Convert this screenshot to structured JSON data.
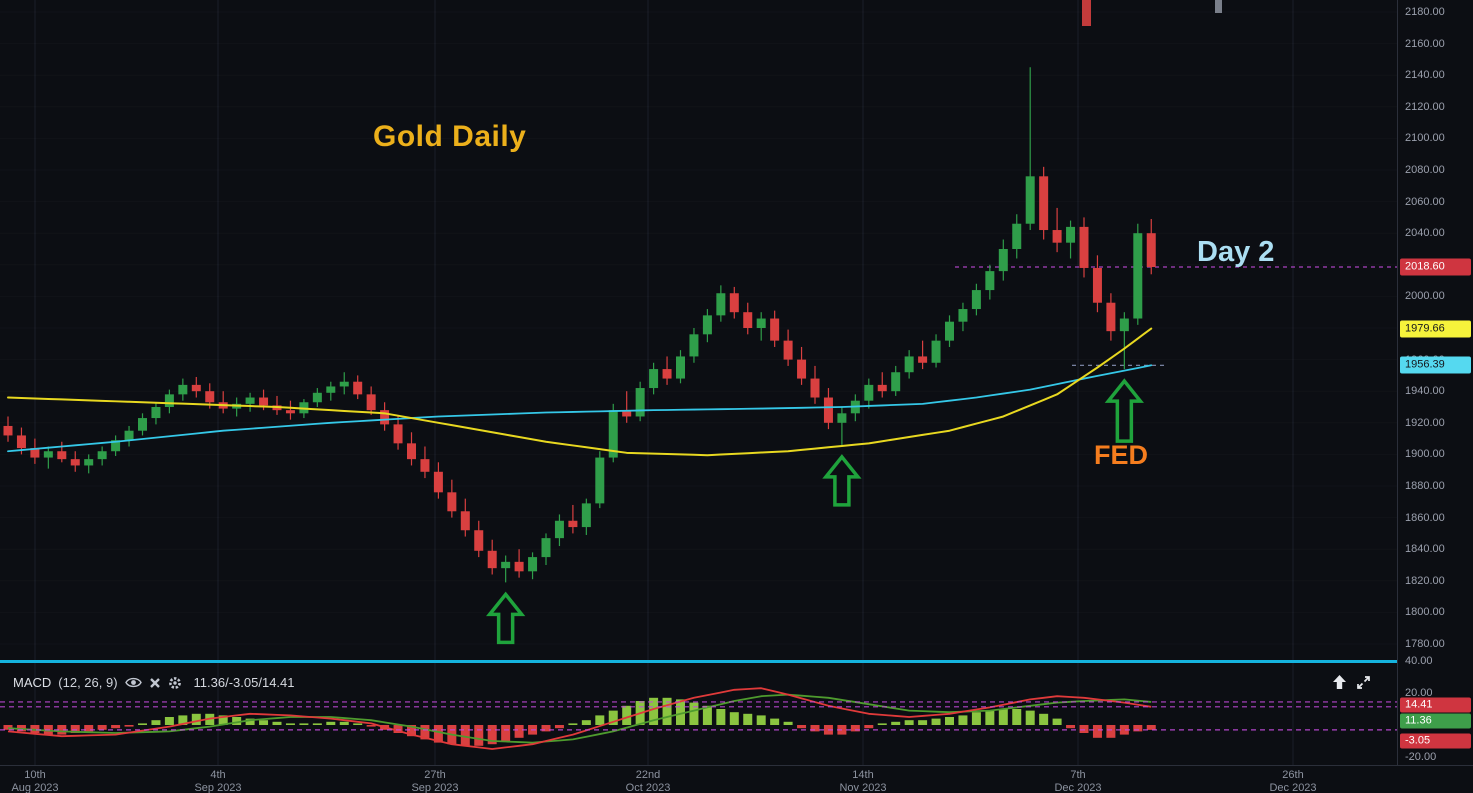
{
  "annotations": {
    "chart_title": "Gold Daily",
    "day_label": "Day 2",
    "fed_label": "FED"
  },
  "colors": {
    "background": "#0c0e13",
    "candle_up": "#2f9e4a",
    "candle_down": "#d94040",
    "ma_yellow": "#e8d820",
    "ma_cyan": "#35c8e8",
    "hist_up": "#8bc540",
    "hist_down": "#d94040",
    "macd_line": "#e03a3a",
    "signal_line": "#4e9b2e",
    "dashed_level": "#c44bdd",
    "separator_line": "#15b3de",
    "arrow_green": "#1fa33c",
    "title_gold": "#ecb01b",
    "day2_blue": "#abdef2",
    "fed_orange": "#f57d1e",
    "axis_text": "#9ba0ad"
  },
  "price_axis": {
    "ticks": [
      "2180.00",
      "2160.00",
      "2140.00",
      "2120.00",
      "2100.00",
      "2080.00",
      "2060.00",
      "2040.00",
      "2020.00",
      "2000.00",
      "1980.00",
      "1960.00",
      "1940.00",
      "1920.00",
      "1900.00",
      "1880.00",
      "1860.00",
      "1840.00",
      "1820.00",
      "1800.00",
      "1780.00"
    ],
    "badges": [
      {
        "label": "2018.60",
        "value": 2018.6,
        "bg": "#cf3540",
        "fg": "#ffffff",
        "name": "last-price-badge"
      },
      {
        "label": "1979.66",
        "value": 1979.66,
        "bg": "#f6f33b",
        "fg": "#15171c",
        "name": "yellow-ma-price-badge"
      },
      {
        "label": "1956.39",
        "value": 1956.39,
        "bg": "#55d9f0",
        "fg": "#15171c",
        "name": "cyan-ma-price-badge"
      }
    ]
  },
  "macd_panel": {
    "title": "MACD",
    "params": "(12, 26, 9)",
    "values": "11.36/-3.05/14.41",
    "ticks": [
      {
        "label": "40.00",
        "value": 40
      },
      {
        "label": "20.00",
        "value": 20
      },
      {
        "label": "0.00",
        "value": 0
      },
      {
        "label": "-20.00",
        "value": -20
      }
    ],
    "badges": [
      {
        "label": "14.41",
        "bg": "#cf3540",
        "fg": "#ffffff",
        "name": "macd-signal-badge"
      },
      {
        "label": "11.36",
        "bg": "#3e9e4a",
        "fg": "#ffffff",
        "name": "macd-line-badge"
      },
      {
        "label": "-3.05",
        "bg": "#cf3540",
        "fg": "#ffffff",
        "name": "macd-hist-badge"
      }
    ]
  },
  "time_axis": {
    "labels": [
      {
        "day": "10th",
        "month": "Aug 2023"
      },
      {
        "day": "4th",
        "month": "Sep 2023"
      },
      {
        "day": "27th",
        "month": "Sep 2023"
      },
      {
        "day": "22nd",
        "month": "Oct 2023"
      },
      {
        "day": "14th",
        "month": "Nov 2023"
      },
      {
        "day": "7th",
        "month": "Dec 2023"
      },
      {
        "day": "26th",
        "month": "Dec 2023"
      }
    ]
  },
  "chart_data": {
    "type": "candlestick",
    "title": "Gold Daily",
    "price_axis_visible_range": [
      1780,
      2180
    ],
    "x_tick_labels": [
      "10th Aug 2023",
      "4th Sep 2023",
      "27th Sep 2023",
      "22nd Oct 2023",
      "14th Nov 2023",
      "7th Dec 2023",
      "26th Dec 2023"
    ],
    "candles": [
      [
        1918,
        1924,
        1908,
        1912
      ],
      [
        1912,
        1917,
        1900,
        1904
      ],
      [
        1904,
        1910,
        1894,
        1898
      ],
      [
        1898,
        1905,
        1891,
        1902
      ],
      [
        1902,
        1908,
        1895,
        1897
      ],
      [
        1897,
        1902,
        1889,
        1893
      ],
      [
        1893,
        1900,
        1888,
        1897
      ],
      [
        1897,
        1905,
        1893,
        1902
      ],
      [
        1902,
        1912,
        1899,
        1909
      ],
      [
        1909,
        1918,
        1905,
        1915
      ],
      [
        1915,
        1926,
        1912,
        1923
      ],
      [
        1923,
        1933,
        1919,
        1930
      ],
      [
        1930,
        1941,
        1926,
        1938
      ],
      [
        1938,
        1948,
        1934,
        1944
      ],
      [
        1944,
        1949,
        1936,
        1940
      ],
      [
        1940,
        1945,
        1929,
        1933
      ],
      [
        1933,
        1940,
        1926,
        1929
      ],
      [
        1929,
        1936,
        1924,
        1932
      ],
      [
        1932,
        1939,
        1927,
        1936
      ],
      [
        1936,
        1941,
        1928,
        1931
      ],
      [
        1931,
        1937,
        1925,
        1928
      ],
      [
        1928,
        1934,
        1922,
        1926
      ],
      [
        1926,
        1935,
        1923,
        1933
      ],
      [
        1933,
        1942,
        1930,
        1939
      ],
      [
        1939,
        1946,
        1934,
        1943
      ],
      [
        1943,
        1952,
        1938,
        1946
      ],
      [
        1946,
        1950,
        1935,
        1938
      ],
      [
        1938,
        1943,
        1925,
        1928
      ],
      [
        1928,
        1933,
        1915,
        1919
      ],
      [
        1919,
        1924,
        1903,
        1907
      ],
      [
        1907,
        1914,
        1893,
        1897
      ],
      [
        1897,
        1905,
        1885,
        1889
      ],
      [
        1889,
        1895,
        1872,
        1876
      ],
      [
        1876,
        1884,
        1860,
        1864
      ],
      [
        1864,
        1872,
        1848,
        1852
      ],
      [
        1852,
        1858,
        1835,
        1839
      ],
      [
        1839,
        1846,
        1824,
        1828
      ],
      [
        1828,
        1836,
        1819,
        1832
      ],
      [
        1832,
        1840,
        1822,
        1826
      ],
      [
        1826,
        1838,
        1821,
        1835
      ],
      [
        1835,
        1850,
        1830,
        1847
      ],
      [
        1847,
        1862,
        1842,
        1858
      ],
      [
        1858,
        1868,
        1850,
        1854
      ],
      [
        1854,
        1872,
        1849,
        1869
      ],
      [
        1869,
        1902,
        1866,
        1898
      ],
      [
        1898,
        1932,
        1895,
        1928
      ],
      [
        1928,
        1940,
        1920,
        1924
      ],
      [
        1924,
        1946,
        1921,
        1942
      ],
      [
        1942,
        1958,
        1938,
        1954
      ],
      [
        1954,
        1962,
        1944,
        1948
      ],
      [
        1948,
        1966,
        1945,
        1962
      ],
      [
        1962,
        1980,
        1958,
        1976
      ],
      [
        1976,
        1992,
        1971,
        1988
      ],
      [
        1988,
        2007,
        1984,
        2002
      ],
      [
        2002,
        2006,
        1986,
        1990
      ],
      [
        1990,
        1996,
        1976,
        1980
      ],
      [
        1980,
        1990,
        1972,
        1986
      ],
      [
        1986,
        1991,
        1968,
        1972
      ],
      [
        1972,
        1979,
        1956,
        1960
      ],
      [
        1960,
        1968,
        1944,
        1948
      ],
      [
        1948,
        1956,
        1932,
        1936
      ],
      [
        1936,
        1942,
        1916,
        1920
      ],
      [
        1920,
        1930,
        1906,
        1926
      ],
      [
        1926,
        1938,
        1921,
        1934
      ],
      [
        1934,
        1948,
        1929,
        1944
      ],
      [
        1944,
        1952,
        1936,
        1940
      ],
      [
        1940,
        1956,
        1937,
        1952
      ],
      [
        1952,
        1966,
        1948,
        1962
      ],
      [
        1962,
        1972,
        1954,
        1958
      ],
      [
        1958,
        1976,
        1955,
        1972
      ],
      [
        1972,
        1988,
        1968,
        1984
      ],
      [
        1984,
        1996,
        1978,
        1992
      ],
      [
        1992,
        2008,
        1988,
        2004
      ],
      [
        2004,
        2020,
        1998,
        2016
      ],
      [
        2016,
        2036,
        2010,
        2030
      ],
      [
        2030,
        2052,
        2024,
        2046
      ],
      [
        2046,
        2145,
        2042,
        2076
      ],
      [
        2076,
        2082,
        2036,
        2042
      ],
      [
        2042,
        2056,
        2028,
        2034
      ],
      [
        2034,
        2048,
        2024,
        2044
      ],
      [
        2044,
        2050,
        2012,
        2018
      ],
      [
        2018,
        2026,
        1990,
        1996
      ],
      [
        1996,
        2002,
        1972,
        1978
      ],
      [
        1978,
        1990,
        1954,
        1986
      ],
      [
        1986,
        2046,
        1982,
        2040
      ],
      [
        2040,
        2049,
        2014,
        2018.6
      ]
    ],
    "overlays": {
      "yellow_ma": {
        "current_value": 1979.66,
        "anchors": [
          [
            0,
            1936
          ],
          [
            10,
            1933
          ],
          [
            20,
            1930
          ],
          [
            28,
            1926
          ],
          [
            34,
            1917
          ],
          [
            40,
            1908
          ],
          [
            46,
            1901
          ],
          [
            52,
            1899.5
          ],
          [
            58,
            1902
          ],
          [
            64,
            1907
          ],
          [
            70,
            1915
          ],
          [
            74,
            1924
          ],
          [
            78,
            1938
          ],
          [
            81,
            1955
          ],
          [
            83,
            1967
          ],
          [
            85,
            1979.66
          ]
        ]
      },
      "cyan_ma": {
        "current_value": 1956.39,
        "anchors": [
          [
            0,
            1902
          ],
          [
            8,
            1908
          ],
          [
            16,
            1915
          ],
          [
            24,
            1920
          ],
          [
            32,
            1924
          ],
          [
            40,
            1926.5
          ],
          [
            48,
            1928
          ],
          [
            56,
            1929
          ],
          [
            62,
            1930
          ],
          [
            68,
            1932
          ],
          [
            72,
            1936
          ],
          [
            76,
            1941
          ],
          [
            80,
            1948
          ],
          [
            85,
            1956.39
          ]
        ]
      }
    },
    "dashed_price_levels": [
      2018.6,
      1956.39
    ],
    "up_arrow_marker_indexes": [
      37,
      62,
      83
    ],
    "macd": {
      "visible_range": [
        -20,
        40
      ],
      "current": {
        "macd": 11.36,
        "histogram": -3.05,
        "signal": 14.41
      },
      "dashed_levels": [
        14.41,
        11.36,
        -3.05
      ],
      "histogram": [
        -3,
        -4,
        -5,
        -6,
        -6,
        -5,
        -4,
        -3,
        -2,
        -1,
        1,
        3,
        5,
        6,
        7,
        7,
        6,
        5,
        4,
        3,
        2,
        1,
        1,
        1,
        2,
        2,
        1,
        -1,
        -3,
        -5,
        -7,
        -9,
        -11,
        -12,
        -13,
        -13,
        -12,
        -10,
        -8,
        -6,
        -4,
        -2,
        1,
        3,
        6,
        9,
        12,
        15,
        17,
        17,
        16,
        14,
        12,
        10,
        8,
        7,
        6,
        4,
        2,
        -2,
        -4,
        -6,
        -6,
        -4,
        -2,
        1,
        2,
        3,
        3,
        4,
        5,
        6,
        8,
        9,
        10,
        10,
        9,
        7,
        4,
        -2,
        -5,
        -8,
        -8,
        -6,
        -4,
        -3.05
      ],
      "macd_line_anchors": [
        [
          0,
          -4
        ],
        [
          4,
          -7
        ],
        [
          8,
          -6
        ],
        [
          12,
          -1
        ],
        [
          15,
          4
        ],
        [
          18,
          7
        ],
        [
          21,
          6
        ],
        [
          24,
          4
        ],
        [
          27,
          1
        ],
        [
          30,
          -6
        ],
        [
          33,
          -12
        ],
        [
          36,
          -15
        ],
        [
          39,
          -12
        ],
        [
          42,
          -6
        ],
        [
          45,
          2
        ],
        [
          48,
          10
        ],
        [
          51,
          17
        ],
        [
          54,
          22
        ],
        [
          56,
          23
        ],
        [
          58,
          19
        ],
        [
          61,
          12
        ],
        [
          64,
          7
        ],
        [
          67,
          5
        ],
        [
          70,
          7
        ],
        [
          73,
          11
        ],
        [
          76,
          16
        ],
        [
          78,
          18
        ],
        [
          80,
          17
        ],
        [
          83,
          14
        ],
        [
          85,
          11.36
        ]
      ],
      "signal_line_anchors": [
        [
          0,
          -2
        ],
        [
          4,
          -4
        ],
        [
          8,
          -5
        ],
        [
          12,
          -4
        ],
        [
          15,
          -1
        ],
        [
          18,
          3
        ],
        [
          21,
          5
        ],
        [
          24,
          5
        ],
        [
          27,
          3
        ],
        [
          30,
          -1
        ],
        [
          33,
          -6
        ],
        [
          36,
          -10
        ],
        [
          39,
          -11
        ],
        [
          42,
          -9
        ],
        [
          45,
          -4
        ],
        [
          48,
          3
        ],
        [
          51,
          9
        ],
        [
          54,
          15
        ],
        [
          56,
          18
        ],
        [
          58,
          19
        ],
        [
          61,
          17
        ],
        [
          64,
          13
        ],
        [
          67,
          9
        ],
        [
          70,
          8
        ],
        [
          73,
          9
        ],
        [
          76,
          12
        ],
        [
          78,
          14
        ],
        [
          80,
          15
        ],
        [
          83,
          16
        ],
        [
          85,
          14.41
        ]
      ]
    }
  }
}
